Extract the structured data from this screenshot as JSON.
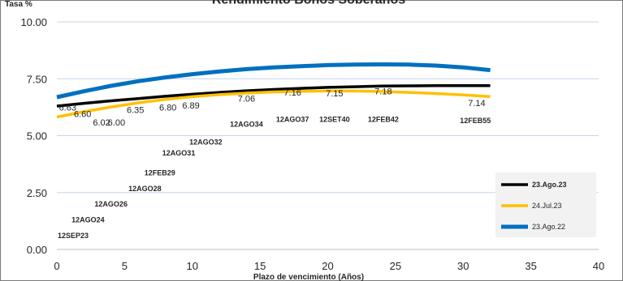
{
  "chart_data": {
    "type": "line",
    "title": "Rendimiento Bonos Soberanos",
    "ylabel": "Tasa %",
    "xlabel": "Plazo de vencimiento (Años)",
    "xlim": [
      0,
      40
    ],
    "ylim": [
      0,
      10
    ],
    "xticks": [
      0,
      5,
      10,
      15,
      20,
      25,
      30,
      35,
      40
    ],
    "yticks": [
      "0.00",
      "2.50",
      "5.00",
      "7.50",
      "10.00"
    ],
    "grid": "horizontal",
    "legend_position": "bottom-right",
    "series": [
      {
        "name": "23.Ago.23",
        "color": "#000000",
        "x": [
          0,
          2,
          4,
          6,
          8,
          10,
          12,
          14,
          16,
          18,
          20,
          22,
          24,
          26,
          28,
          30,
          32
        ],
        "y": [
          6.3,
          6.42,
          6.53,
          6.63,
          6.73,
          6.82,
          6.9,
          6.97,
          7.03,
          7.08,
          7.12,
          7.15,
          7.18,
          7.19,
          7.2,
          7.2,
          7.2
        ]
      },
      {
        "name": "24.Jul.23",
        "color": "#ffc000",
        "x": [
          0,
          2,
          4,
          6,
          8,
          10,
          12,
          14,
          16,
          18,
          20,
          22,
          24,
          26,
          28,
          30,
          32
        ],
        "y": [
          5.82,
          6.05,
          6.26,
          6.44,
          6.59,
          6.71,
          6.8,
          6.87,
          6.92,
          6.95,
          6.96,
          6.96,
          6.94,
          6.9,
          6.85,
          6.79,
          6.72
        ]
      },
      {
        "name": "23.Ago.22",
        "color": "#0070c0",
        "x": [
          0,
          2,
          4,
          6,
          8,
          10,
          12,
          14,
          16,
          18,
          20,
          22,
          24,
          26,
          28,
          30,
          32
        ],
        "y": [
          6.69,
          6.95,
          7.19,
          7.39,
          7.56,
          7.7,
          7.82,
          7.92,
          8.0,
          8.05,
          8.1,
          8.12,
          8.13,
          8.12,
          8.08,
          8.0,
          7.88
        ]
      }
    ],
    "data_labels": [
      {
        "text": "6.63",
        "x": 0.8,
        "y": 6.1
      },
      {
        "text": "6.60",
        "x": 1.9,
        "y": 5.82
      },
      {
        "text": "6.02",
        "x": 3.3,
        "y": 5.45
      },
      {
        "text": "6.00",
        "x": 4.4,
        "y": 5.45
      },
      {
        "text": "6.35",
        "x": 5.8,
        "y": 6.0
      },
      {
        "text": "6.80",
        "x": 8.2,
        "y": 6.1
      },
      {
        "text": "6.89",
        "x": 9.9,
        "y": 6.2
      },
      {
        "text": "7.06",
        "x": 14.0,
        "y": 6.5
      },
      {
        "text": "7.16",
        "x": 17.4,
        "y": 6.77
      },
      {
        "text": "7.15",
        "x": 20.5,
        "y": 6.72
      },
      {
        "text": "7.18",
        "x": 24.1,
        "y": 6.82
      },
      {
        "text": "7.14",
        "x": 31.0,
        "y": 6.3
      }
    ],
    "bond_labels": [
      {
        "text": "12SEP23",
        "x": 1.2,
        "y": 0.5
      },
      {
        "text": "12AGO24",
        "x": 2.3,
        "y": 1.2
      },
      {
        "text": "12AGO26",
        "x": 4.0,
        "y": 1.88
      },
      {
        "text": "12AGO28",
        "x": 6.5,
        "y": 2.57
      },
      {
        "text": "12FEB29",
        "x": 7.6,
        "y": 3.25
      },
      {
        "text": "12AGO31",
        "x": 9.0,
        "y": 4.12
      },
      {
        "text": "12AGO32",
        "x": 11.0,
        "y": 4.6
      },
      {
        "text": "12AGO34",
        "x": 14.0,
        "y": 5.4
      },
      {
        "text": "12AGO37",
        "x": 17.4,
        "y": 5.6
      },
      {
        "text": "12SET40",
        "x": 20.5,
        "y": 5.6
      },
      {
        "text": "12FEB42",
        "x": 24.1,
        "y": 5.6
      },
      {
        "text": "12FEB55",
        "x": 30.9,
        "y": 5.55
      }
    ]
  }
}
